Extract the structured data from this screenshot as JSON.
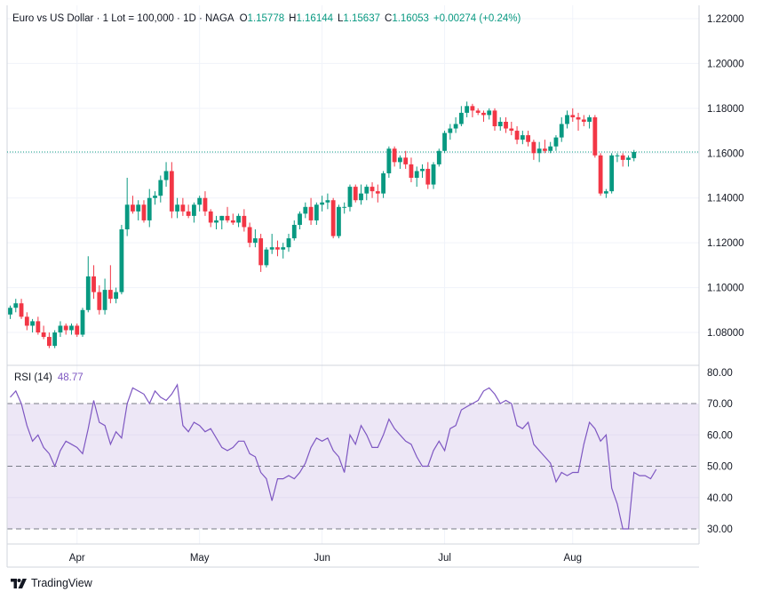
{
  "header": {
    "symbol": "Euro vs US Dollar · 1 Lot = 100,000 · 1D · NAGA",
    "o_label": "O",
    "o_value": "1.15778",
    "h_label": "H",
    "h_value": "1.16144",
    "l_label": "L",
    "l_value": "1.15637",
    "c_label": "C",
    "c_value": "1.16053",
    "change": "+0.00274 (+0.24%)"
  },
  "rsi_header": {
    "name": "RSI (14)",
    "value": "48.77"
  },
  "branding": {
    "logo_text": "TradingView"
  },
  "colors": {
    "up": "#089981",
    "down": "#f23645",
    "rsi_line": "#7e57c2",
    "rsi_band": "#ede7f6",
    "grid": "#f0f3fa"
  },
  "chart_data": [
    {
      "type": "candlestick",
      "title": "Euro vs US Dollar · 1 Lot = 100,000 · 1D · NAGA",
      "x_ticks": [
        {
          "label": "Apr",
          "index": 12
        },
        {
          "label": "May",
          "index": 34
        },
        {
          "label": "Jun",
          "index": 56
        },
        {
          "label": "Jul",
          "index": 78
        },
        {
          "label": "Aug",
          "index": 101
        }
      ],
      "y_ticks": [
        "1.08000",
        "1.10000",
        "1.12000",
        "1.14000",
        "1.16000",
        "1.18000",
        "1.20000",
        "1.22000"
      ],
      "y_tick_values": [
        1.08,
        1.1,
        1.12,
        1.14,
        1.16,
        1.18,
        1.2,
        1.22
      ],
      "ylim": [
        1.068,
        1.224
      ],
      "last_close": 1.16053,
      "candles": [
        [
          1.088,
          1.092,
          1.086,
          1.091
        ],
        [
          1.091,
          1.095,
          1.089,
          1.093
        ],
        [
          1.093,
          1.095,
          1.086,
          1.087
        ],
        [
          1.087,
          1.089,
          1.081,
          1.083
        ],
        [
          1.083,
          1.086,
          1.08,
          1.085
        ],
        [
          1.085,
          1.087,
          1.079,
          1.08
        ],
        [
          1.08,
          1.083,
          1.077,
          1.078
        ],
        [
          1.078,
          1.08,
          1.073,
          1.074
        ],
        [
          1.074,
          1.081,
          1.073,
          1.08
        ],
        [
          1.08,
          1.085,
          1.078,
          1.083
        ],
        [
          1.083,
          1.084,
          1.079,
          1.081
        ],
        [
          1.081,
          1.084,
          1.079,
          1.083
        ],
        [
          1.083,
          1.084,
          1.078,
          1.079
        ],
        [
          1.079,
          1.091,
          1.078,
          1.09
        ],
        [
          1.09,
          1.114,
          1.089,
          1.105
        ],
        [
          1.105,
          1.11,
          1.095,
          1.098
        ],
        [
          1.098,
          1.101,
          1.088,
          1.09
        ],
        [
          1.09,
          1.104,
          1.088,
          1.099
        ],
        [
          1.099,
          1.11,
          1.093,
          1.095
        ],
        [
          1.095,
          1.1,
          1.093,
          1.098
        ],
        [
          1.098,
          1.128,
          1.097,
          1.126
        ],
        [
          1.126,
          1.149,
          1.123,
          1.137
        ],
        [
          1.137,
          1.141,
          1.133,
          1.134
        ],
        [
          1.134,
          1.139,
          1.13,
          1.137
        ],
        [
          1.137,
          1.139,
          1.129,
          1.13
        ],
        [
          1.13,
          1.144,
          1.127,
          1.14
        ],
        [
          1.14,
          1.143,
          1.137,
          1.141
        ],
        [
          1.141,
          1.15,
          1.138,
          1.148
        ],
        [
          1.148,
          1.156,
          1.145,
          1.152
        ],
        [
          1.152,
          1.156,
          1.131,
          1.134
        ],
        [
          1.134,
          1.14,
          1.131,
          1.137
        ],
        [
          1.137,
          1.14,
          1.132,
          1.134
        ],
        [
          1.134,
          1.137,
          1.131,
          1.132
        ],
        [
          1.132,
          1.138,
          1.129,
          1.137
        ],
        [
          1.137,
          1.141,
          1.134,
          1.14
        ],
        [
          1.14,
          1.143,
          1.132,
          1.134
        ],
        [
          1.134,
          1.135,
          1.127,
          1.129
        ],
        [
          1.129,
          1.132,
          1.126,
          1.13
        ],
        [
          1.13,
          1.132,
          1.126,
          1.132
        ],
        [
          1.132,
          1.136,
          1.129,
          1.13
        ],
        [
          1.13,
          1.133,
          1.128,
          1.129
        ],
        [
          1.129,
          1.133,
          1.127,
          1.132
        ],
        [
          1.132,
          1.135,
          1.125,
          1.127
        ],
        [
          1.127,
          1.129,
          1.118,
          1.12
        ],
        [
          1.12,
          1.126,
          1.118,
          1.122
        ],
        [
          1.122,
          1.124,
          1.107,
          1.11
        ],
        [
          1.11,
          1.118,
          1.109,
          1.117
        ],
        [
          1.117,
          1.124,
          1.115,
          1.118
        ],
        [
          1.118,
          1.121,
          1.114,
          1.117
        ],
        [
          1.117,
          1.12,
          1.113,
          1.118
        ],
        [
          1.118,
          1.124,
          1.116,
          1.122
        ],
        [
          1.122,
          1.13,
          1.121,
          1.128
        ],
        [
          1.128,
          1.134,
          1.126,
          1.133
        ],
        [
          1.133,
          1.138,
          1.131,
          1.136
        ],
        [
          1.136,
          1.14,
          1.128,
          1.13
        ],
        [
          1.13,
          1.138,
          1.128,
          1.137
        ],
        [
          1.137,
          1.141,
          1.134,
          1.138
        ],
        [
          1.138,
          1.142,
          1.135,
          1.139
        ],
        [
          1.139,
          1.14,
          1.122,
          1.123
        ],
        [
          1.123,
          1.137,
          1.122,
          1.136
        ],
        [
          1.136,
          1.138,
          1.133,
          1.136
        ],
        [
          1.136,
          1.146,
          1.134,
          1.145
        ],
        [
          1.145,
          1.146,
          1.138,
          1.139
        ],
        [
          1.139,
          1.146,
          1.137,
          1.142
        ],
        [
          1.142,
          1.146,
          1.139,
          1.145
        ],
        [
          1.145,
          1.147,
          1.14,
          1.143
        ],
        [
          1.143,
          1.146,
          1.138,
          1.142
        ],
        [
          1.142,
          1.152,
          1.14,
          1.151
        ],
        [
          1.151,
          1.163,
          1.149,
          1.162
        ],
        [
          1.162,
          1.163,
          1.154,
          1.156
        ],
        [
          1.156,
          1.159,
          1.153,
          1.158
        ],
        [
          1.158,
          1.161,
          1.153,
          1.155
        ],
        [
          1.155,
          1.158,
          1.147,
          1.149
        ],
        [
          1.149,
          1.154,
          1.145,
          1.152
        ],
        [
          1.152,
          1.155,
          1.149,
          1.153
        ],
        [
          1.153,
          1.156,
          1.144,
          1.146
        ],
        [
          1.146,
          1.156,
          1.144,
          1.155
        ],
        [
          1.155,
          1.162,
          1.154,
          1.161
        ],
        [
          1.161,
          1.17,
          1.16,
          1.169
        ],
        [
          1.169,
          1.173,
          1.166,
          1.171
        ],
        [
          1.171,
          1.176,
          1.169,
          1.173
        ],
        [
          1.173,
          1.181,
          1.172,
          1.178
        ],
        [
          1.178,
          1.183,
          1.176,
          1.181
        ],
        [
          1.181,
          1.182,
          1.176,
          1.179
        ],
        [
          1.179,
          1.18,
          1.177,
          1.178
        ],
        [
          1.178,
          1.179,
          1.174,
          1.177
        ],
        [
          1.177,
          1.18,
          1.175,
          1.179
        ],
        [
          1.179,
          1.18,
          1.17,
          1.172
        ],
        [
          1.172,
          1.176,
          1.17,
          1.174
        ],
        [
          1.174,
          1.176,
          1.169,
          1.171
        ],
        [
          1.171,
          1.174,
          1.168,
          1.17
        ],
        [
          1.17,
          1.172,
          1.164,
          1.166
        ],
        [
          1.166,
          1.17,
          1.164,
          1.168
        ],
        [
          1.168,
          1.17,
          1.163,
          1.165
        ],
        [
          1.165,
          1.166,
          1.157,
          1.16
        ],
        [
          1.16,
          1.165,
          1.156,
          1.162
        ],
        [
          1.162,
          1.166,
          1.16,
          1.161
        ],
        [
          1.161,
          1.165,
          1.16,
          1.163
        ],
        [
          1.163,
          1.168,
          1.161,
          1.167
        ],
        [
          1.167,
          1.176,
          1.165,
          1.173
        ],
        [
          1.173,
          1.179,
          1.171,
          1.177
        ],
        [
          1.177,
          1.18,
          1.174,
          1.176
        ],
        [
          1.176,
          1.178,
          1.17,
          1.175
        ],
        [
          1.175,
          1.177,
          1.172,
          1.174
        ],
        [
          1.174,
          1.177,
          1.171,
          1.176
        ],
        [
          1.176,
          1.177,
          1.158,
          1.159
        ],
        [
          1.159,
          1.16,
          1.141,
          1.142
        ],
        [
          1.142,
          1.144,
          1.14,
          1.143
        ],
        [
          1.143,
          1.16,
          1.142,
          1.159
        ],
        [
          1.159,
          1.16,
          1.156,
          1.159
        ],
        [
          1.159,
          1.16,
          1.154,
          1.157
        ],
        [
          1.157,
          1.159,
          1.154,
          1.158
        ],
        [
          1.15778,
          1.16144,
          1.15637,
          1.16053
        ]
      ]
    },
    {
      "type": "line",
      "title": "RSI (14)",
      "ylim": [
        27,
        81
      ],
      "y_ticks": [
        "30.00",
        "40.00",
        "50.00",
        "60.00",
        "70.00",
        "80.00"
      ],
      "y_tick_values": [
        30,
        40,
        50,
        60,
        70,
        80
      ],
      "band": [
        30,
        70
      ],
      "midline": 50,
      "series": [
        {
          "name": "RSI (14)",
          "values": [
            72,
            74,
            70,
            63,
            58,
            60,
            56,
            54,
            50,
            55,
            58,
            57,
            56,
            54,
            62,
            71,
            64,
            63,
            57,
            61,
            59,
            70,
            75,
            74,
            73,
            70,
            74,
            72,
            71,
            73,
            76,
            63,
            61,
            64,
            63,
            61,
            62,
            59,
            56,
            55,
            56,
            58,
            58,
            54,
            53,
            48,
            46,
            39,
            46,
            46,
            47,
            46,
            48,
            51,
            56,
            59,
            58,
            59,
            55,
            53,
            48,
            60,
            57,
            63,
            60,
            56,
            56,
            60,
            65,
            62,
            60,
            58,
            57,
            53,
            50,
            50,
            55,
            58,
            55,
            62,
            63,
            68,
            69,
            70,
            71,
            74,
            75,
            73,
            70,
            71,
            70,
            63,
            62,
            64,
            57,
            55,
            53,
            51,
            45,
            48,
            47,
            48,
            48,
            57,
            64,
            62,
            58,
            60,
            43,
            38,
            30,
            30,
            48,
            47,
            47,
            46,
            49
          ]
        }
      ],
      "last_value": 48.77
    }
  ]
}
